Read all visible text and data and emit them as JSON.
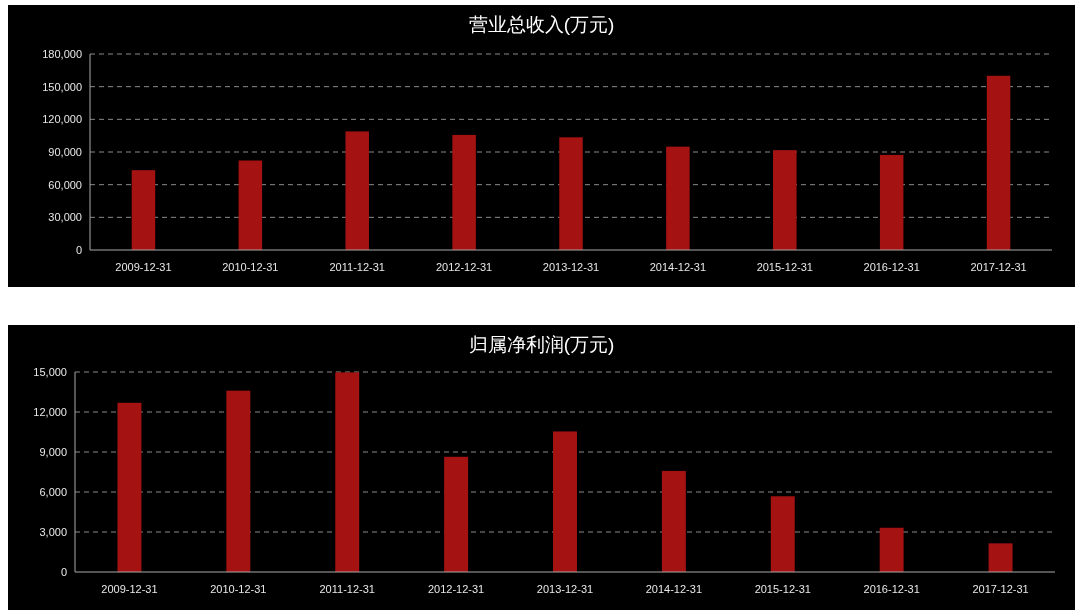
{
  "chart_data": [
    {
      "type": "bar",
      "title": "营业总收入(万元)",
      "categories": [
        "2009-12-31",
        "2010-12-31",
        "2011-12-31",
        "2012-12-31",
        "2013-12-31",
        "2014-12-31",
        "2015-12-31",
        "2016-12-31",
        "2017-12-31"
      ],
      "values": [
        73300,
        82200,
        108900,
        105700,
        103500,
        94900,
        91700,
        87300,
        160000
      ],
      "color": "#a51212",
      "ylim": [
        0,
        180000
      ],
      "yticks": [
        0,
        {
          "value": 30000,
          "label": "30,000"
        },
        {
          "value": 60000,
          "label": "60,000"
        },
        {
          "value": 90000,
          "label": "90,000"
        },
        {
          "value": 120000,
          "label": "120,000"
        },
        {
          "value": 150000,
          "label": "150,000"
        },
        {
          "value": 180000,
          "label": "180,000"
        }
      ],
      "grid": "y"
    },
    {
      "type": "bar",
      "title": "归属净利润(万元)",
      "categories": [
        "2009-12-31",
        "2010-12-31",
        "2011-12-31",
        "2012-12-31",
        "2013-12-31",
        "2014-12-31",
        "2015-12-31",
        "2016-12-31",
        "2017-12-31"
      ],
      "values": [
        12690,
        13600,
        14970,
        8640,
        10540,
        7580,
        5680,
        3320,
        2150
      ],
      "color": "#a51212",
      "ylim": [
        0,
        15000
      ],
      "yticks": [
        0,
        {
          "value": 3000,
          "label": "3,000"
        },
        {
          "value": 6000,
          "label": "6,000"
        },
        {
          "value": 9000,
          "label": "9,000"
        },
        {
          "value": 12000,
          "label": "12,000"
        },
        {
          "value": 15000,
          "label": "15,000"
        }
      ],
      "grid": "y"
    }
  ]
}
